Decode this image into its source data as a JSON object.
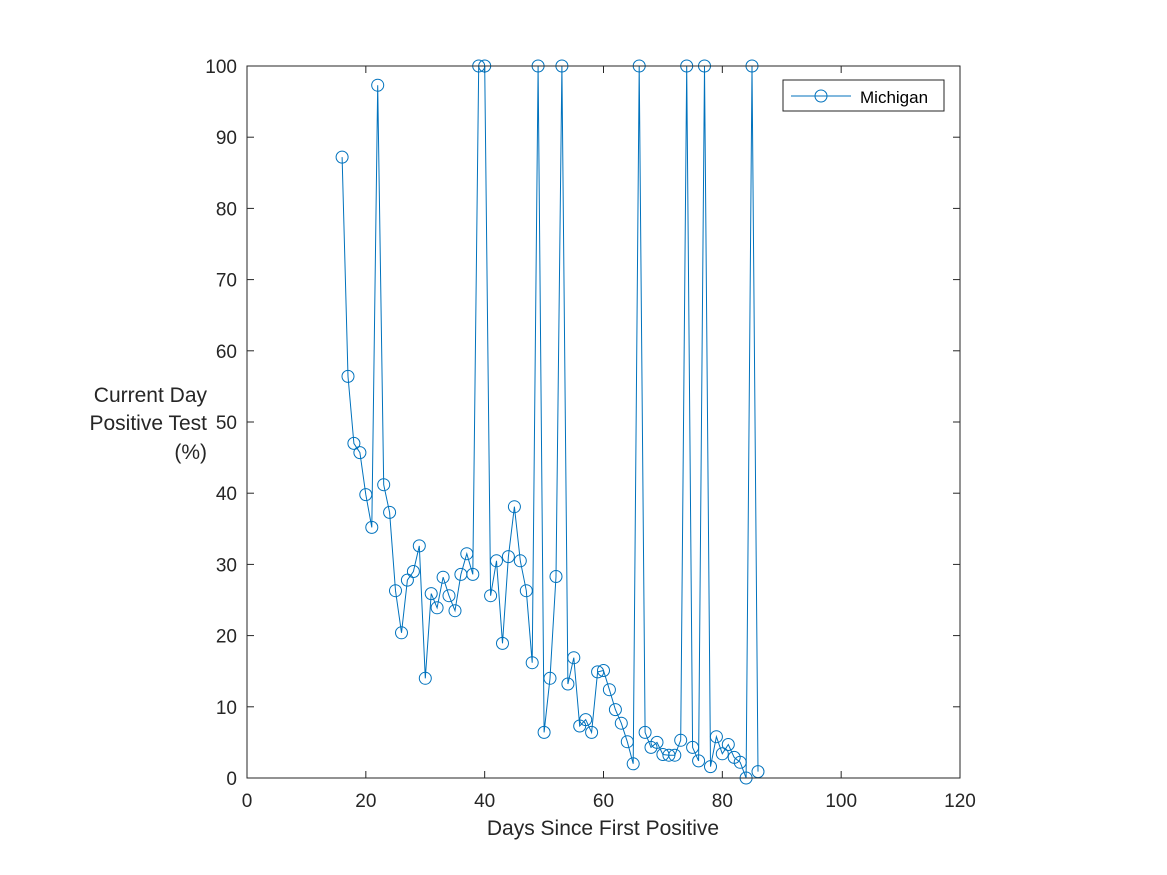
{
  "chart_data": {
    "type": "line",
    "xlabel": "Days Since First Positive",
    "ylabel_lines": [
      "Current Day",
      "Positive Test",
      "(%)"
    ],
    "xlim": [
      0,
      120
    ],
    "ylim": [
      0,
      100
    ],
    "xticks": [
      0,
      20,
      40,
      60,
      80,
      100,
      120
    ],
    "yticks": [
      0,
      10,
      20,
      30,
      40,
      50,
      60,
      70,
      80,
      90,
      100
    ],
    "grid": false,
    "legend_position": "top-right",
    "series_color": "#0072BD",
    "marker": "circle",
    "series": [
      {
        "name": "Michigan",
        "x": [
          16,
          17,
          18,
          19,
          20,
          21,
          22,
          23,
          24,
          25,
          26,
          27,
          28,
          29,
          30,
          31,
          32,
          33,
          34,
          35,
          36,
          37,
          38,
          39,
          40,
          41,
          42,
          43,
          44,
          45,
          46,
          47,
          48,
          49,
          50,
          51,
          52,
          53,
          54,
          55,
          56,
          57,
          58,
          59,
          60,
          61,
          62,
          63,
          64,
          65,
          66,
          67,
          68,
          69,
          70,
          71,
          72,
          73,
          74,
          75,
          76,
          77,
          78,
          79,
          80,
          81,
          82,
          83,
          84,
          85,
          86
        ],
        "y": [
          87.2,
          56.4,
          47.0,
          45.7,
          39.8,
          35.2,
          97.3,
          41.2,
          37.3,
          26.3,
          20.4,
          27.8,
          29.0,
          32.6,
          14.0,
          25.9,
          23.9,
          28.2,
          25.6,
          23.5,
          28.6,
          31.5,
          28.6,
          100,
          100,
          25.6,
          30.5,
          18.9,
          31.1,
          38.1,
          30.5,
          26.3,
          16.2,
          100,
          6.4,
          14.0,
          28.3,
          100,
          13.2,
          16.9,
          7.3,
          8.2,
          6.4,
          14.9,
          15.1,
          12.4,
          9.6,
          7.7,
          5.1,
          2.0,
          100,
          6.4,
          4.3,
          5.0,
          3.3,
          3.2,
          3.2,
          5.3,
          100,
          4.3,
          2.4,
          100,
          1.6,
          5.8,
          3.4,
          4.7,
          2.9,
          2.2,
          0,
          100,
          0.9
        ]
      }
    ]
  }
}
